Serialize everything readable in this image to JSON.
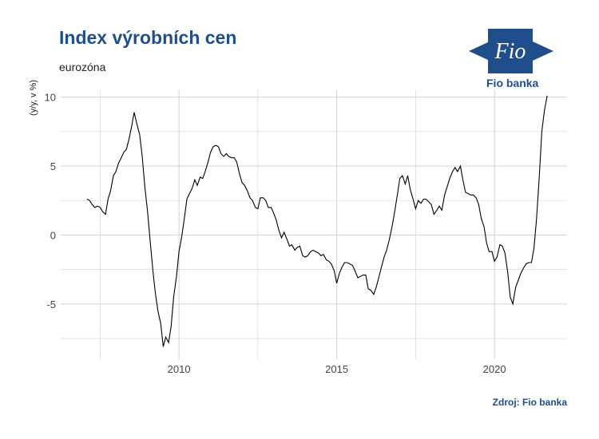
{
  "title": "Index výrobních cen",
  "subtitle": "eurozóna",
  "source": "Zdroj: Fio banka",
  "logo": {
    "text": "Fio",
    "caption": "Fio banka",
    "color": "#1f4e8c"
  },
  "chart_data": {
    "type": "line",
    "title": "Index výrobních cen",
    "subtitle": "eurozóna",
    "ylabel": "(y/y, v %)",
    "xlabel": "",
    "xlim": [
      2006.25,
      2022.3
    ],
    "ylim": [
      -9.0,
      10.5
    ],
    "x_ticks": [
      2010,
      2015,
      2020
    ],
    "x_tick_labels": [
      "2010",
      "2015",
      "2020"
    ],
    "y_ticks": [
      -5,
      0,
      5,
      10
    ],
    "y_tick_labels": [
      "-5",
      "0",
      "5",
      "10"
    ],
    "grid": true,
    "line_color": "#000000",
    "series": [
      {
        "x": [
          2007.08,
          2007.17,
          2007.25,
          2007.33,
          2007.42,
          2007.5,
          2007.58,
          2007.67,
          2007.75,
          2007.83,
          2007.92,
          2008.0,
          2008.08,
          2008.17,
          2008.25,
          2008.33,
          2008.42,
          2008.5,
          2008.58,
          2008.67,
          2008.75,
          2008.83,
          2008.92,
          2009.0,
          2009.08,
          2009.17,
          2009.25,
          2009.33,
          2009.42,
          2009.5,
          2009.58,
          2009.67,
          2009.75,
          2009.83,
          2009.92,
          2010.0,
          2010.08,
          2010.17,
          2010.25,
          2010.33,
          2010.42,
          2010.5,
          2010.58,
          2010.67,
          2010.75,
          2010.83,
          2010.92,
          2011.0,
          2011.08,
          2011.17,
          2011.25,
          2011.33,
          2011.42,
          2011.5,
          2011.58,
          2011.67,
          2011.75,
          2011.83,
          2011.92,
          2012.0,
          2012.08,
          2012.17,
          2012.25,
          2012.33,
          2012.42,
          2012.5,
          2012.58,
          2012.67,
          2012.75,
          2012.83,
          2012.92,
          2013.0,
          2013.08,
          2013.17,
          2013.25,
          2013.33,
          2013.42,
          2013.5,
          2013.58,
          2013.67,
          2013.75,
          2013.83,
          2013.92,
          2014.0,
          2014.08,
          2014.17,
          2014.25,
          2014.33,
          2014.42,
          2014.5,
          2014.58,
          2014.67,
          2014.75,
          2014.83,
          2014.92,
          2015.0,
          2015.08,
          2015.17,
          2015.25,
          2015.33,
          2015.42,
          2015.5,
          2015.58,
          2015.67,
          2015.75,
          2015.83,
          2015.92,
          2016.0,
          2016.08,
          2016.17,
          2016.25,
          2016.33,
          2016.42,
          2016.5,
          2016.58,
          2016.67,
          2016.75,
          2016.83,
          2016.92,
          2017.0,
          2017.08,
          2017.17,
          2017.25,
          2017.33,
          2017.42,
          2017.5,
          2017.58,
          2017.67,
          2017.75,
          2017.83,
          2017.92,
          2018.0,
          2018.08,
          2018.17,
          2018.25,
          2018.33,
          2018.42,
          2018.5,
          2018.58,
          2018.67,
          2018.75,
          2018.83,
          2018.92,
          2019.0,
          2019.08,
          2019.17,
          2019.25,
          2019.33,
          2019.42,
          2019.5,
          2019.58,
          2019.67,
          2019.75,
          2019.83,
          2019.92,
          2020.0,
          2020.08,
          2020.17,
          2020.25,
          2020.33,
          2020.42,
          2020.5,
          2020.58,
          2020.67,
          2020.75,
          2020.83,
          2020.92,
          2021.0,
          2021.08,
          2021.17,
          2021.25,
          2021.33,
          2021.42,
          2021.5,
          2021.58,
          2021.67
        ],
        "values": [
          2.6,
          2.5,
          2.2,
          2.0,
          2.1,
          2.0,
          1.7,
          1.5,
          2.6,
          3.2,
          4.3,
          4.6,
          5.2,
          5.6,
          6.0,
          6.2,
          7.0,
          7.9,
          8.9,
          8.0,
          7.3,
          5.8,
          3.4,
          1.8,
          -0.3,
          -2.5,
          -4.2,
          -5.5,
          -6.4,
          -8.1,
          -7.4,
          -7.8,
          -6.6,
          -4.5,
          -3.0,
          -1.2,
          -0.2,
          1.2,
          2.6,
          3.0,
          3.4,
          4.0,
          3.6,
          4.2,
          4.1,
          4.6,
          5.3,
          6.0,
          6.4,
          6.5,
          6.4,
          5.9,
          5.7,
          5.9,
          5.7,
          5.6,
          5.6,
          5.3,
          4.4,
          3.8,
          3.6,
          3.2,
          2.7,
          2.5,
          2.0,
          1.9,
          2.7,
          2.7,
          2.5,
          2.0,
          2.0,
          1.6,
          1.1,
          0.3,
          -0.2,
          0.2,
          -0.3,
          -0.8,
          -0.7,
          -1.1,
          -0.9,
          -0.8,
          -1.5,
          -1.6,
          -1.5,
          -1.2,
          -1.1,
          -1.2,
          -1.3,
          -1.5,
          -1.4,
          -1.8,
          -1.9,
          -2.1,
          -2.6,
          -3.5,
          -2.8,
          -2.3,
          -2.0,
          -2.0,
          -2.1,
          -2.2,
          -2.6,
          -3.1,
          -3.0,
          -2.9,
          -2.9,
          -3.9,
          -4.0,
          -4.3,
          -3.8,
          -3.1,
          -2.3,
          -1.6,
          -1.1,
          -0.3,
          0.6,
          1.6,
          2.9,
          4.1,
          4.3,
          3.7,
          4.3,
          3.3,
          2.6,
          1.9,
          2.5,
          2.3,
          2.6,
          2.6,
          2.4,
          2.2,
          1.5,
          1.8,
          2.1,
          1.8,
          2.9,
          3.5,
          4.1,
          4.6,
          4.9,
          4.6,
          5.0,
          4.0,
          3.1,
          3.0,
          2.9,
          2.9,
          2.7,
          2.2,
          1.2,
          0.6,
          -0.6,
          -1.2,
          -1.2,
          -1.9,
          -1.6,
          -0.7,
          -0.8,
          -1.3,
          -2.7,
          -4.5,
          -5.0,
          -3.8,
          -3.3,
          -2.8,
          -2.4,
          -2.1,
          -2.0,
          -2.0,
          -1.0,
          1.1,
          4.2,
          7.5,
          9.0,
          10.1
        ]
      }
    ]
  }
}
